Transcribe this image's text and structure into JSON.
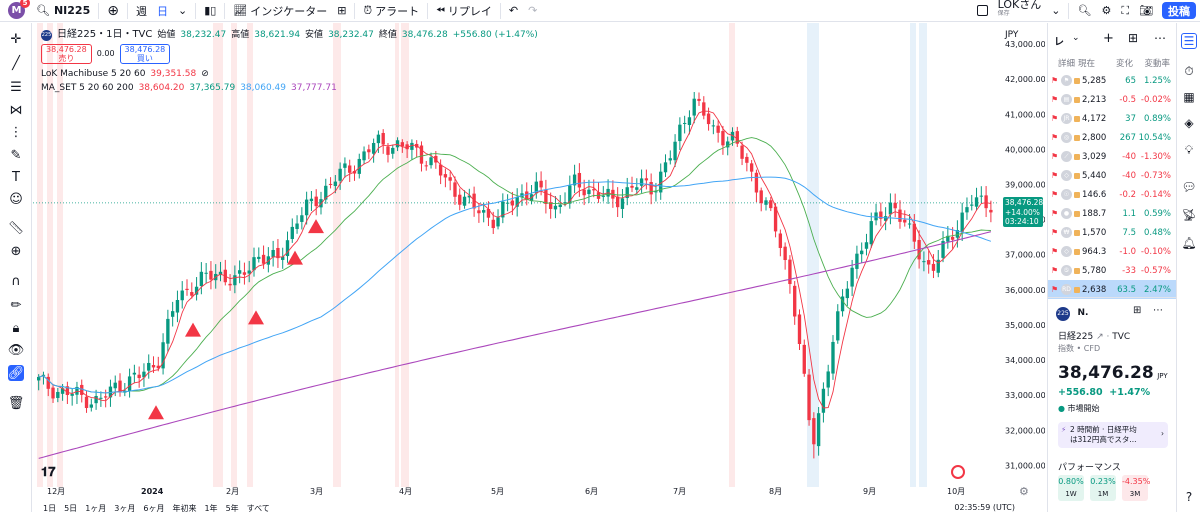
{
  "topbar": {
    "avatar_letter": "M",
    "avatar_badge": "5",
    "symbol": "NI225",
    "interval": "週",
    "chart_type": "日",
    "indicators": "インジケーター",
    "alert": "アラート",
    "replay": "リプレイ",
    "user_name": "LOKさん",
    "user_sub": "保存",
    "publish": "投稿"
  },
  "legend": {
    "symbol_badge": "225",
    "title": "日経225・1日・TVC",
    "open_label": "始値",
    "open": "38,232.47",
    "high_label": "高値",
    "high": "38,621.94",
    "low_label": "安値",
    "low": "38,232.47",
    "close_label": "終値",
    "close": "38,476.28",
    "change": "+556.80 (+1.47%)",
    "sell_price": "38,476.28",
    "sell_label": "売り",
    "spread": "0.00",
    "buy_price": "38,476.28",
    "buy_label": "買い",
    "ind1_name": "LoK Machibuse 5 20 60",
    "ind1_value": "39,351.58",
    "ind2_name": "MA_SET 5 20 60 200",
    "ind2_v1": "38,604.20",
    "ind2_v2": "37,365.79",
    "ind2_v3": "38,060.49",
    "ind2_v4": "37,777.71"
  },
  "price_axis": {
    "currency": "JPY",
    "ticks": [
      "43,000.00",
      "42,000.00",
      "41,000.00",
      "40,000.00",
      "39,000.00",
      "38,000.00",
      "37,000.00",
      "36,000.00",
      "35,000.00",
      "34,000.00",
      "33,000.00",
      "32,000.00",
      "31,000.00"
    ],
    "last_price": "38,476.28",
    "last_pct": "+14.00%",
    "countdown": "03:24:10"
  },
  "time_axis": {
    "labels": [
      "12月",
      "2024",
      "2月",
      "3月",
      "4月",
      "5月",
      "6月",
      "7月",
      "8月",
      "9月",
      "10月"
    ]
  },
  "bottombar": {
    "ranges": [
      "1日",
      "5日",
      "1ヶ月",
      "3ヶ月",
      "6ヶ月",
      "年初来",
      "1年",
      "5年",
      "すべて"
    ],
    "clock": "02:35:59 (UTC)"
  },
  "watchlist": {
    "title": "レ",
    "columns": [
      "詳細",
      "現在",
      "変化",
      "変動率"
    ],
    "rows": [
      {
        "last": "5,285",
        "chg": "65",
        "pct": "1.25%",
        "dir": "up"
      },
      {
        "last": "2,213",
        "chg": "-0.5",
        "pct": "-0.02%",
        "dir": "down"
      },
      {
        "last": "4,172",
        "chg": "37",
        "pct": "0.89%",
        "dir": "up"
      },
      {
        "last": "2,800",
        "chg": "267",
        "pct": "10.54%",
        "dir": "up"
      },
      {
        "last": "3,029",
        "chg": "-40",
        "pct": "-1.30%",
        "dir": "down"
      },
      {
        "last": "5,440",
        "chg": "-40",
        "pct": "-0.73%",
        "dir": "down"
      },
      {
        "last": "146.6",
        "chg": "-0.2",
        "pct": "-0.14%",
        "dir": "down"
      },
      {
        "last": "188.7",
        "chg": "1.1",
        "pct": "0.59%",
        "dir": "up"
      },
      {
        "last": "1,570",
        "chg": "7.5",
        "pct": "0.48%",
        "dir": "up"
      },
      {
        "last": "964.3",
        "chg": "-1.0",
        "pct": "-0.10%",
        "dir": "down"
      },
      {
        "last": "5,780",
        "chg": "-33",
        "pct": "-0.57%",
        "dir": "down"
      },
      {
        "last": "2,638",
        "chg": "63.5",
        "pct": "2.47%",
        "dir": "up"
      }
    ]
  },
  "details": {
    "badge": "225",
    "short_name": "N.",
    "full_name": "日経225",
    "exchange": "TVC",
    "sub": "指数 • CFD",
    "price": "38,476.28",
    "currency": "JPY",
    "change": "+556.80",
    "change_pct": "+1.47%",
    "market_status": "市場開始",
    "news_time": "2 時間前 · 日経平均",
    "news_text": "は312円高でスタ...",
    "perf_title": "パフォーマンス",
    "perf": [
      {
        "value": "0.80%",
        "label": "1W",
        "dir": "pos"
      },
      {
        "value": "0.23%",
        "label": "1M",
        "dir": "pos"
      },
      {
        "value": "-4.35%",
        "label": "3M",
        "dir": "neg"
      }
    ]
  },
  "colors": {
    "up": "#089981",
    "down": "#f23645",
    "accent": "#2962ff",
    "ma5": "#f23645",
    "ma20": "#4caf50",
    "ma60": "#42a5f5",
    "ma200": "#ab47bc"
  },
  "chart_data": {
    "type": "candlestick",
    "title": "日経225・1日・TVC",
    "ylim": [
      30500,
      43200
    ],
    "x_labels": [
      "12月",
      "2024",
      "2月",
      "3月",
      "4月",
      "5月",
      "6月",
      "7月",
      "8月",
      "9月",
      "10月"
    ],
    "close_approx": [
      33400,
      33100,
      33000,
      32800,
      33300,
      33500,
      34000,
      35800,
      36200,
      36500,
      36200,
      37000,
      36800,
      38000,
      38600,
      39200,
      39600,
      40200,
      40100,
      40000,
      39500,
      38800,
      38300,
      38000,
      38600,
      38900,
      38300,
      39000,
      38800,
      38500,
      39000,
      38900,
      40000,
      41500,
      40500,
      40300,
      39200,
      38000,
      36000,
      31500,
      34500,
      36700,
      37800,
      38500,
      37500,
      36500,
      37600,
      38500,
      38476
    ],
    "ma200_start": 31200,
    "ma200_end": 37800,
    "markers": [
      "buy-triangle",
      "buy-triangle",
      "buy-triangle",
      "buy-triangle",
      "buy-triangle"
    ]
  }
}
